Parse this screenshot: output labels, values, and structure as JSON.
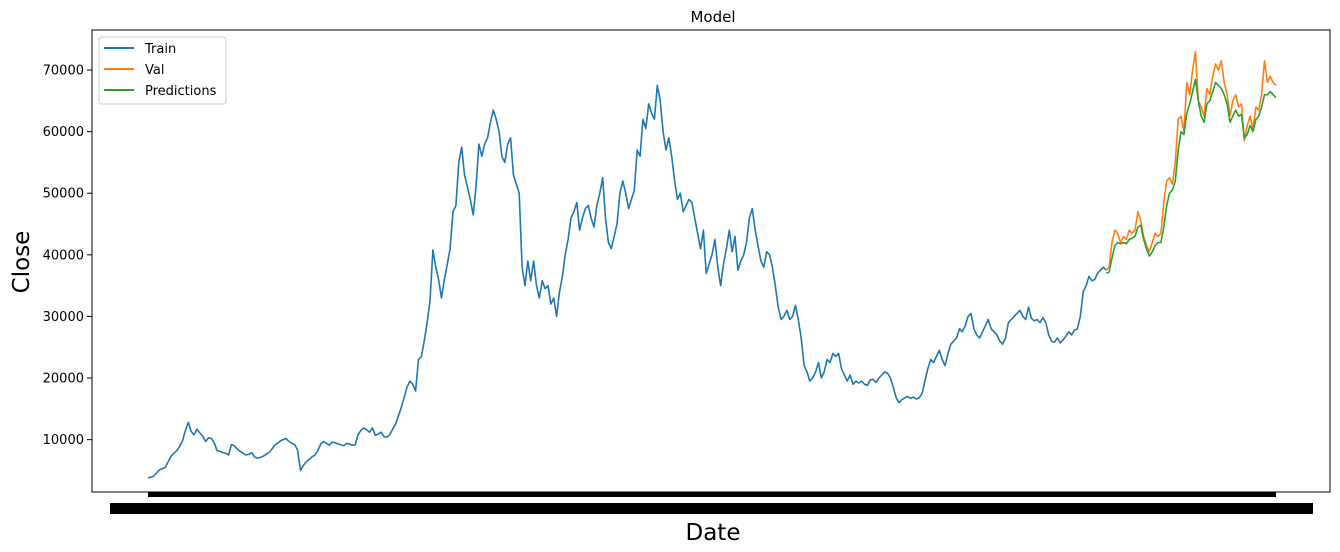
{
  "chart_data": {
    "type": "line",
    "title": "Model",
    "xlabel": "Date",
    "ylabel": "Close",
    "x_tick_labels_legible": false,
    "ylim": [
      1500,
      76500
    ],
    "yticks": [
      10000,
      20000,
      30000,
      40000,
      50000,
      60000,
      70000
    ],
    "grid": false,
    "legend_position": "top-left",
    "series": [
      {
        "name": "Train",
        "color": "#1f77b4",
        "values": [
          3800,
          3900,
          4100,
          4600,
          5100,
          5300,
          5500,
          6400,
          7300,
          7800,
          8200,
          8900,
          9800,
          11500,
          12800,
          11300,
          10800,
          11700,
          11100,
          10600,
          9700,
          10300,
          10200,
          9500,
          8200,
          8100,
          7900,
          7800,
          7500,
          9200,
          9000,
          8500,
          8100,
          7800,
          7500,
          7600,
          7900,
          7200,
          7000,
          7100,
          7300,
          7600,
          7900,
          8400,
          9100,
          9400,
          9800,
          10000,
          10200,
          9700,
          9400,
          9200,
          8300,
          5000,
          5800,
          6400,
          6800,
          7200,
          7500,
          8200,
          9300,
          9700,
          9400,
          9100,
          9600,
          9500,
          9300,
          9200,
          9000,
          9400,
          9300,
          9100,
          9200,
          10800,
          11500,
          11900,
          11600,
          11200,
          11900,
          10700,
          10900,
          11200,
          10500,
          10400,
          10800,
          11700,
          12500,
          13800,
          15200,
          16800,
          18500,
          19500,
          19000,
          17900,
          23000,
          23500,
          26000,
          29000,
          32500,
          40800,
          38000,
          36000,
          33000,
          36000,
          38500,
          41000,
          47000,
          48000,
          55000,
          57500,
          53000,
          51000,
          49000,
          46500,
          51000,
          58000,
          56000,
          58000,
          59000,
          61500,
          63500,
          62000,
          60000,
          56000,
          55000,
          58000,
          59000,
          53000,
          51500,
          50000,
          38000,
          35000,
          39000,
          35800,
          39000,
          35000,
          33000,
          35800,
          34500,
          35000,
          32000,
          33000,
          30000,
          34000,
          36500,
          40000,
          42500,
          46000,
          47000,
          48500,
          44000,
          46000,
          47500,
          48000,
          46000,
          44500,
          48000,
          50000,
          52500,
          46000,
          42000,
          41000,
          43000,
          45000,
          50000,
          52000,
          50000,
          47500,
          49000,
          50500,
          57000,
          56000,
          62000,
          60500,
          64500,
          63000,
          62000,
          67500,
          65000,
          60000,
          57000,
          59000,
          56000,
          52000,
          49000,
          50000,
          47000,
          48000,
          49000,
          48500,
          46000,
          43500,
          41000,
          44000,
          37000,
          38500,
          40000,
          42500,
          38000,
          35000,
          38500,
          41000,
          44000,
          40500,
          43000,
          37500,
          39000,
          40000,
          42000,
          46000,
          47500,
          44000,
          41500,
          39000,
          38000,
          40500,
          40000,
          38000,
          35000,
          31500,
          29500,
          30000,
          31000,
          29500,
          30000,
          31800,
          29500,
          26500,
          22000,
          21000,
          19500,
          20000,
          21000,
          22500,
          20000,
          21000,
          23000,
          22500,
          24000,
          23500,
          24000,
          21500,
          20500,
          19500,
          20500,
          19000,
          19500,
          19200,
          19500,
          19000,
          18800,
          19700,
          19800,
          19300,
          20000,
          20500,
          21000,
          20800,
          20000,
          18500,
          16800,
          16000,
          16500,
          16800,
          17000,
          16700,
          16900,
          16600,
          16800,
          17500,
          19500,
          21500,
          23000,
          22500,
          23500,
          24500,
          23000,
          22000,
          24000,
          25500,
          26000,
          26500,
          28000,
          27500,
          28500,
          30000,
          30500,
          28000,
          27000,
          26500,
          27500,
          28500,
          29500,
          28000,
          27500,
          27000,
          26000,
          25500,
          26500,
          29000,
          29500,
          30000,
          30500,
          31000,
          30000,
          29500,
          31500,
          29700,
          29300,
          29500,
          29000,
          29800,
          29000,
          27000,
          26000,
          25800,
          26500,
          25700,
          26200,
          26800,
          27500,
          27000,
          27800,
          28000,
          30000,
          34000,
          35000,
          36500,
          35800,
          36000,
          37000,
          37500,
          38000,
          37500
        ]
      },
      {
        "name": "Val",
        "color": "#ff7f0e",
        "values": [
          37500,
          38000,
          42000,
          44000,
          43500,
          42000,
          43000,
          42500,
          44000,
          43500,
          44000,
          47000,
          45500,
          43000,
          41500,
          40500,
          42000,
          43500,
          43000,
          43500,
          48500,
          52000,
          52500,
          51500,
          55000,
          62000,
          62500,
          60000,
          68000,
          66000,
          70000,
          73000,
          65000,
          64000,
          62500,
          67000,
          66000,
          69000,
          71000,
          70000,
          71500,
          68000,
          66000,
          62500,
          65000,
          66000,
          64000,
          64500,
          58500,
          61000,
          62500,
          60500,
          64000,
          63500,
          66000,
          71500,
          68000,
          69000,
          68000,
          67500
        ]
      },
      {
        "name": "Predictions",
        "color": "#2ca02c",
        "values": [
          37000,
          37200,
          39500,
          41500,
          42000,
          41800,
          42000,
          41800,
          42500,
          42700,
          43000,
          44500,
          44800,
          42500,
          41000,
          39800,
          40500,
          41500,
          42000,
          42000,
          44500,
          48000,
          50000,
          50500,
          52000,
          57000,
          60000,
          59500,
          63000,
          64500,
          66500,
          68500,
          65000,
          62500,
          61500,
          64500,
          65000,
          66500,
          68000,
          67500,
          67000,
          66000,
          64500,
          61500,
          62500,
          63500,
          62500,
          62800,
          59000,
          59500,
          61000,
          60000,
          62000,
          62500,
          64000,
          66000,
          66000,
          66500,
          66000,
          65500
        ]
      }
    ]
  }
}
